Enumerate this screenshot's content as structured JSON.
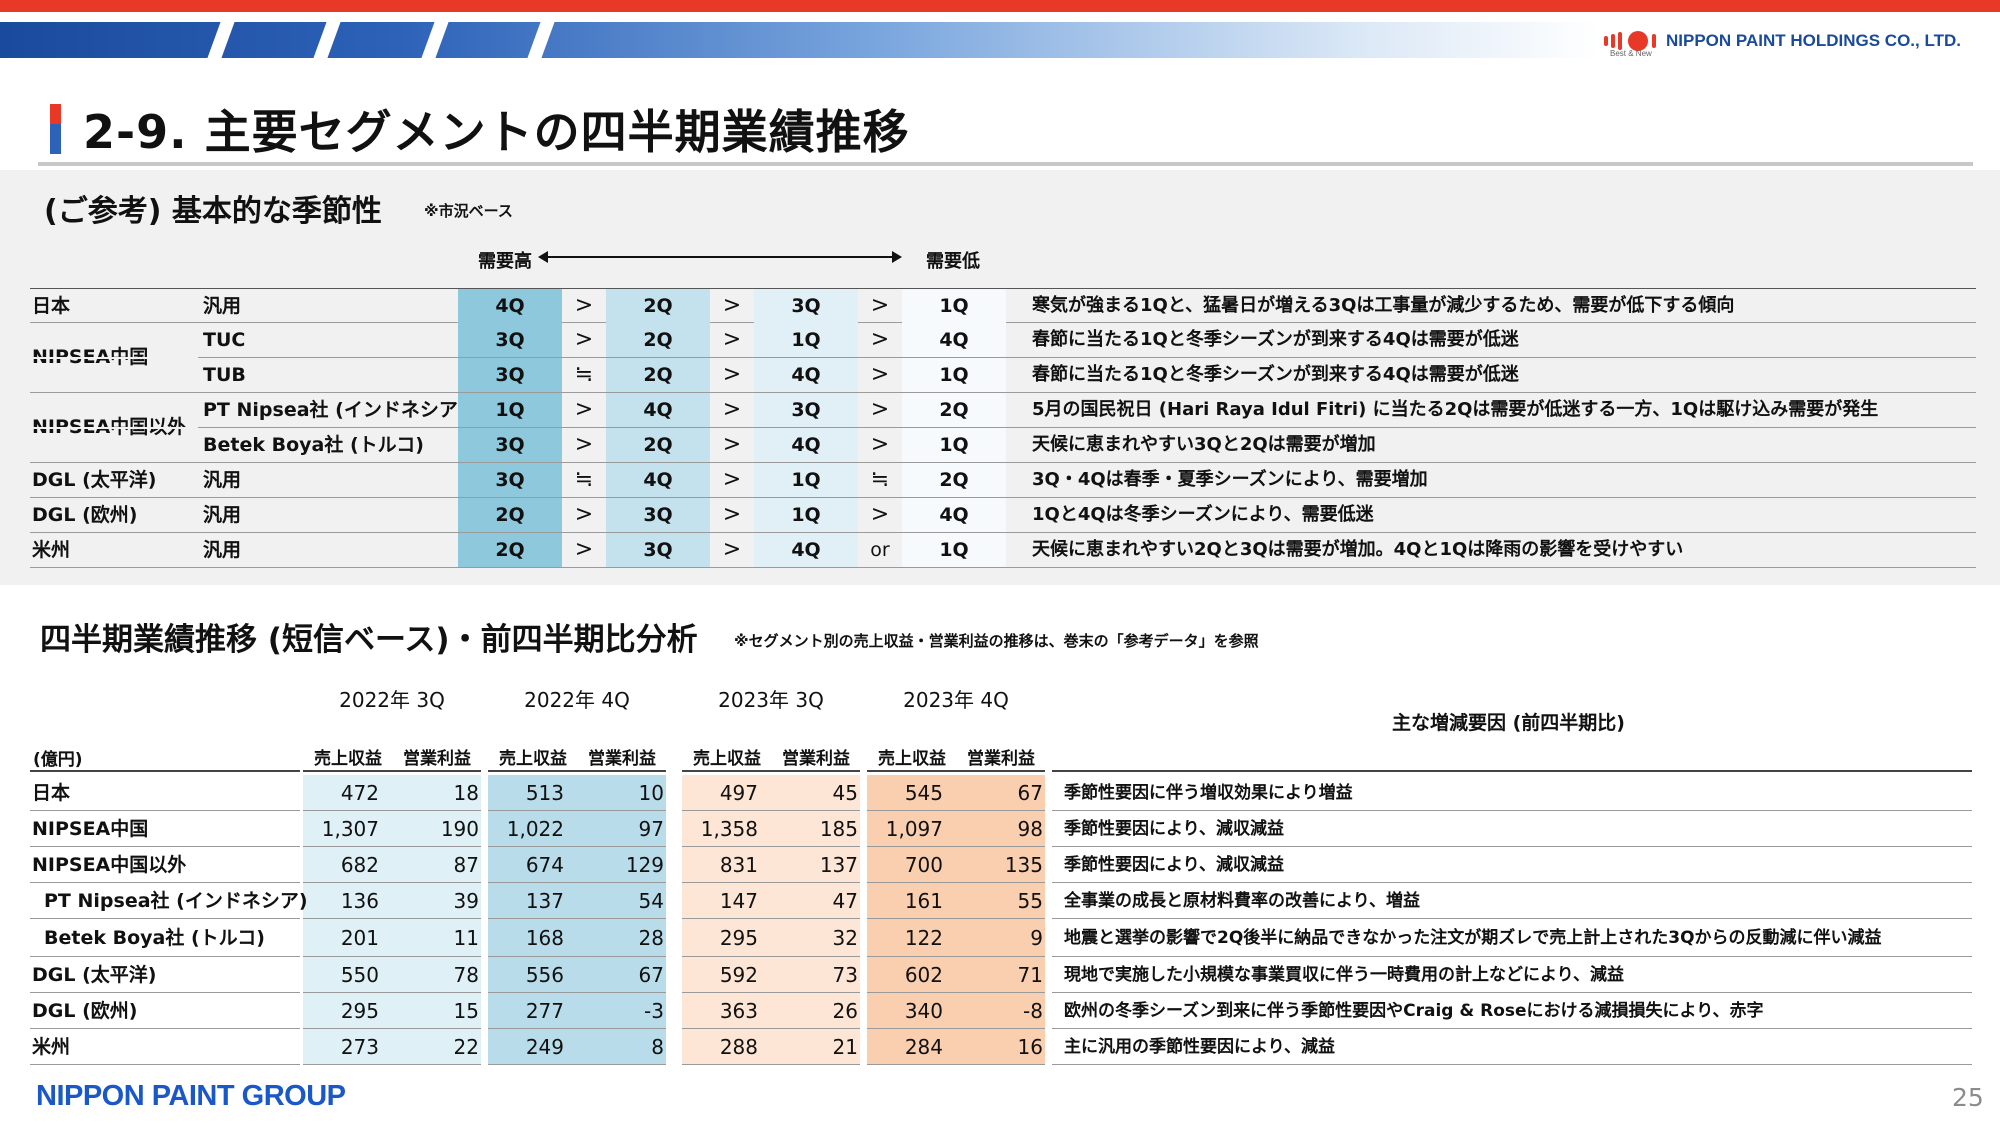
{
  "header": {
    "company_logo_text": "NIPPON PAINT HOLDINGS CO., LTD.",
    "company_logo_sub": "Best & New"
  },
  "page": {
    "title": "2-9. 主要セグメントの四半期業績推移",
    "number": "25",
    "footer_logo": "NIPPON PAINT GROUP"
  },
  "seasonality": {
    "title": "(ご参考) 基本的な季節性",
    "note": "※市況ベース",
    "demand_high": "需要高",
    "demand_low": "需要低",
    "rows": [
      {
        "segment": "日本",
        "category": "汎用",
        "q1": "4Q",
        "op1": ">",
        "q2": "2Q",
        "op2": ">",
        "q3": "3Q",
        "op3": ">",
        "q4": "1Q",
        "description": "寒気が強まる1Qと、猛暑日が増える3Qは工事量が減少するため、需要が低下する傾向"
      },
      {
        "segment": "NIPSEA中国",
        "category": "TUC",
        "q1": "3Q",
        "op1": ">",
        "q2": "2Q",
        "op2": ">",
        "q3": "1Q",
        "op3": ">",
        "q4": "4Q",
        "description": "春節に当たる1Qと冬季シーズンが到来する4Qは需要が低迷"
      },
      {
        "segment": "",
        "category": "TUB",
        "q1": "3Q",
        "op1": "≒",
        "q2": "2Q",
        "op2": ">",
        "q3": "4Q",
        "op3": ">",
        "q4": "1Q",
        "description": "春節に当たる1Qと冬季シーズンが到来する4Qは需要が低迷"
      },
      {
        "segment": "NIPSEA中国以外",
        "category": "PT Nipsea社 (インドネシア)",
        "q1": "1Q",
        "op1": ">",
        "q2": "4Q",
        "op2": ">",
        "q3": "3Q",
        "op3": ">",
        "q4": "2Q",
        "description": "5月の国民祝日 (Hari Raya Idul Fitri) に当たる2Qは需要が低迷する一方、1Qは駆け込み需要が発生"
      },
      {
        "segment": "",
        "category": "Betek Boya社 (トルコ)",
        "q1": "3Q",
        "op1": ">",
        "q2": "2Q",
        "op2": ">",
        "q3": "4Q",
        "op3": ">",
        "q4": "1Q",
        "description": "天候に恵まれやすい3Qと2Qは需要が増加"
      },
      {
        "segment": "DGL (太平洋)",
        "category": "汎用",
        "q1": "3Q",
        "op1": "≒",
        "q2": "4Q",
        "op2": ">",
        "q3": "1Q",
        "op3": "≒",
        "q4": "2Q",
        "description": "3Q・4Qは春季・夏季シーズンにより、需要増加"
      },
      {
        "segment": "DGL (欧州)",
        "category": "汎用",
        "q1": "2Q",
        "op1": ">",
        "q2": "3Q",
        "op2": ">",
        "q3": "1Q",
        "op3": ">",
        "q4": "4Q",
        "description": "1Qと4Qは冬季シーズンにより、需要低迷"
      },
      {
        "segment": "米州",
        "category": "汎用",
        "q1": "2Q",
        "op1": ">",
        "q2": "3Q",
        "op2": ">",
        "q3": "4Q",
        "op3": "or",
        "q4": "1Q",
        "description": "天候に恵まれやすい2Qと3Qは需要が増加。4Qと1Qは降雨の影響を受けやすい"
      }
    ]
  },
  "quarterly": {
    "title": "四半期業績推移 (短信ベース)・前四半期比分析",
    "note": "※セグメント別の売上収益・営業利益の推移は、巻末の「参考データ」を参照",
    "unit": "(億円)",
    "reason_header": "主な増減要因 (前四半期比)",
    "periods": [
      "2022年 3Q",
      "2022年 4Q",
      "2023年 3Q",
      "2023年 4Q"
    ],
    "sub_headers": {
      "revenue": "売上収益",
      "profit": "営業利益"
    },
    "rows": [
      {
        "segment": "日本",
        "values": [
          "472",
          "18",
          "513",
          "10",
          "497",
          "45",
          "545",
          "67"
        ],
        "reason": "季節性要因に伴う増収効果により増益"
      },
      {
        "segment": "NIPSEA中国",
        "values": [
          "1,307",
          "190",
          "1,022",
          "97",
          "1,358",
          "185",
          "1,097",
          "98"
        ],
        "reason": "季節性要因により、減収減益"
      },
      {
        "segment": "NIPSEA中国以外",
        "values": [
          "682",
          "87",
          "674",
          "129",
          "831",
          "137",
          "700",
          "135"
        ],
        "reason": "季節性要因により、減収減益"
      },
      {
        "segment": "PT Nipsea社 (インドネシア)",
        "values": [
          "136",
          "39",
          "137",
          "54",
          "147",
          "47",
          "161",
          "55"
        ],
        "reason": "全事業の成長と原材料費率の改善により、増益"
      },
      {
        "segment": "Betek Boya社 (トルコ)",
        "values": [
          "201",
          "11",
          "168",
          "28",
          "295",
          "32",
          "122",
          "9"
        ],
        "reason": "地震と選挙の影響で2Q後半に納品できなかった注文が期ズレで売上計上された3Qからの反動減に伴い減益"
      },
      {
        "segment": "DGL (太平洋)",
        "values": [
          "550",
          "78",
          "556",
          "67",
          "592",
          "73",
          "602",
          "71"
        ],
        "reason": "現地で実施した小規模な事業買収に伴う一時費用の計上などにより、減益"
      },
      {
        "segment": "DGL (欧州)",
        "values": [
          "295",
          "15",
          "277",
          "-3",
          "363",
          "26",
          "340",
          "-8"
        ],
        "reason": "欧州の冬季シーズン到来に伴う季節性要因やCraig & Roseにおける減損損失により、赤字"
      },
      {
        "segment": "米州",
        "values": [
          "273",
          "22",
          "249",
          "8",
          "288",
          "21",
          "284",
          "16"
        ],
        "reason": "主に汎用の季節性要因により、減益"
      }
    ]
  },
  "colors": {
    "brand_red": "#e73828",
    "brand_blue": "#1a4a9c",
    "q_dark_blue": "#8ec8dc",
    "q_light_blue": "#c4e2ee",
    "q_pale_blue": "#e1f0f6",
    "period_2022_3q": "#dff0f6",
    "period_2022_4q": "#b9dcea",
    "period_2023_3q": "#fde6d5",
    "period_2023_4q": "#f9cfaf"
  }
}
